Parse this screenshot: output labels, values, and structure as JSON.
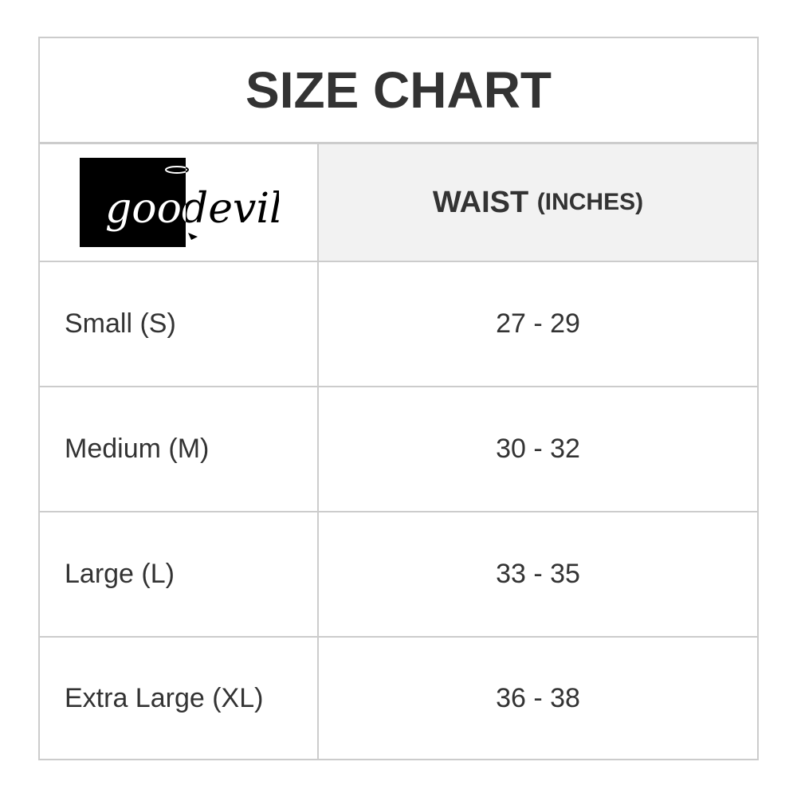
{
  "title": "SIZE CHART",
  "logo": {
    "text": "goodevil"
  },
  "header": {
    "measure": "WAIST",
    "unit": "(INCHES)"
  },
  "rows": [
    {
      "size": "Small (S)",
      "waist": "27 - 29"
    },
    {
      "size": "Medium (M)",
      "waist": "30 - 32"
    },
    {
      "size": "Large (L)",
      "waist": "33 - 35"
    },
    {
      "size": "Extra Large (XL)",
      "waist": "36 - 38"
    }
  ]
}
